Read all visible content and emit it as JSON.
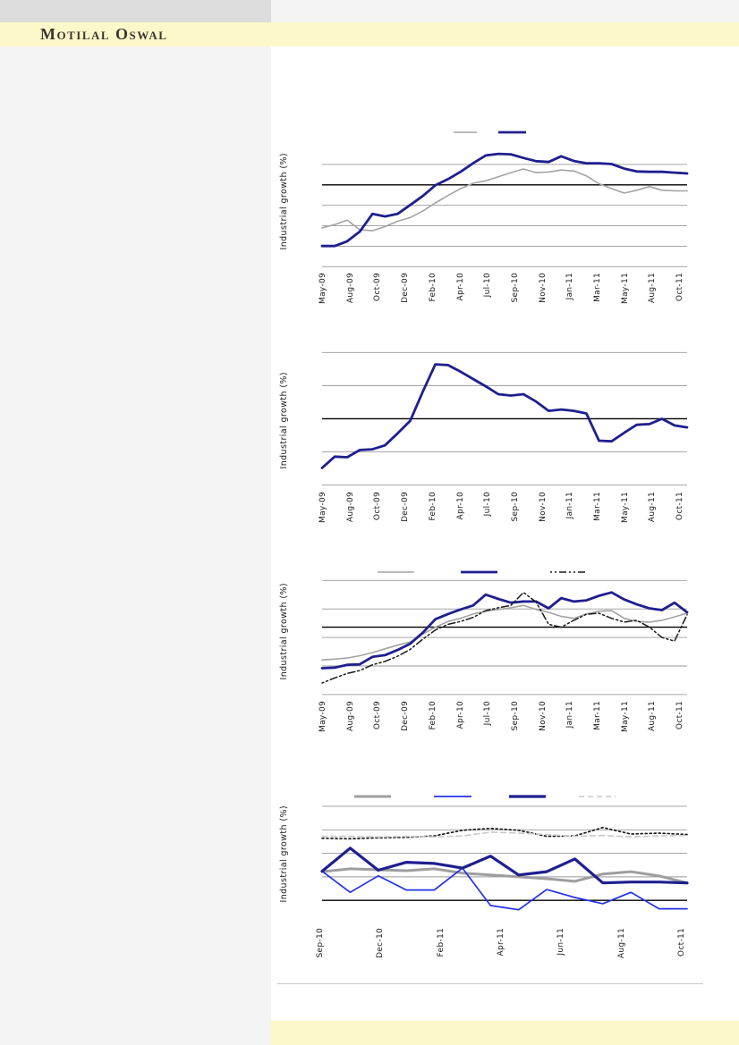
{
  "header": {
    "brand": "Motilal Oswal",
    "band_color": "#fdf8ca",
    "top_block_color": "#dcdcdc"
  },
  "footer": {
    "band_color": "#fdf8ca"
  },
  "palette": {
    "navy": "#1f1f8f",
    "bright_blue": "#2231e8",
    "gray_line": "#a3a3a3",
    "thick_gray": "#9e9e9e",
    "dotted_black": "#1a1a1a",
    "dotted_light": "#c9c9c9",
    "gridline": "#999999",
    "reference_black": "#000000"
  },
  "chart_data": [
    {
      "type": "line",
      "title": "",
      "ylabel": "Industrial growth (%)",
      "x_labels": [
        "May-09",
        "Aug-09",
        "Oct-09",
        "Dec-09",
        "Feb-10",
        "Apr-10",
        "Jul-10",
        "Sep-10",
        "Nov-10",
        "Jan-11",
        "Mar-11",
        "May-11",
        "Aug-11",
        "Oct-11"
      ],
      "ylim": [
        -22.56,
        14.62
      ],
      "gridlines": [
        5,
        -5,
        -10,
        -15,
        -20
      ],
      "reference_line": 0,
      "grid": "on",
      "legend_position": "top",
      "series": [
        {
          "name": "gray-line-series",
          "color": "#a3a3a3",
          "width": 1.6,
          "dash": "",
          "values": [
            -10.5,
            -9.7,
            -8.6,
            -11.0,
            -11.2,
            -10.2,
            -8.9,
            -8.0,
            -6.4,
            -4.4,
            -2.6,
            -0.9,
            0.4,
            1.0,
            2.0,
            3.0,
            3.9,
            3.0,
            3.15,
            3.65,
            3.4,
            2.2,
            0.3,
            -0.9,
            -2.0,
            -1.3,
            -0.4,
            -1.3,
            -1.45,
            -1.45
          ]
        },
        {
          "name": "navy-line-series",
          "color": "#1f1f8f",
          "width": 2.8,
          "dash": "",
          "values": [
            -14.95,
            -14.95,
            -13.8,
            -11.4,
            -7.1,
            -7.7,
            -7.1,
            -4.9,
            -2.7,
            -0.1,
            1.4,
            3.2,
            5.3,
            7.2,
            7.6,
            7.5,
            6.6,
            5.8,
            5.6,
            7.0,
            5.85,
            5.3,
            5.3,
            5.1,
            4.0,
            3.3,
            3.2,
            3.2,
            3.0,
            2.8
          ]
        }
      ],
      "legend": [
        {
          "series": 0,
          "x": 149,
          "w": 26
        },
        {
          "series": 1,
          "x": 199,
          "w": 31
        }
      ]
    },
    {
      "type": "line",
      "title": "",
      "ylabel": "Industrial growth (%)",
      "x_labels": [
        "May-09",
        "Aug-09",
        "Oct-09",
        "Dec-09",
        "Feb-10",
        "Apr-10",
        "Jul-10",
        "Sep-10",
        "Nov-10",
        "Jan-11",
        "Mar-11",
        "May-11",
        "Aug-11",
        "Oct-11"
      ],
      "ylim": [
        -11.66,
        11.25
      ],
      "gridlines": [
        10,
        5,
        -5,
        -10
      ],
      "reference_line": 0,
      "grid": "on",
      "legend_position": "none",
      "series": [
        {
          "name": "navy-line-series",
          "color": "#1f1f8f",
          "width": 2.8,
          "dash": "",
          "values": [
            -7.4,
            -5.7,
            -5.8,
            -4.7,
            -4.6,
            -4.0,
            -2.2,
            -0.3,
            4.1,
            8.2,
            8.1,
            7.1,
            6.0,
            4.9,
            3.7,
            3.5,
            3.7,
            2.6,
            1.2,
            1.4,
            1.2,
            0.8,
            -3.3,
            -3.4,
            -2.1,
            -0.9,
            -0.8,
            0.0,
            -1.0,
            -1.3
          ]
        }
      ],
      "legend": []
    },
    {
      "type": "line",
      "title": "",
      "ylabel": "Industrial growth (%)",
      "x_labels": [
        "May-09",
        "Aug-09",
        "Oct-09",
        "Dec-09",
        "Feb-10",
        "Apr-10",
        "Jul-10",
        "Sep-10",
        "Nov-10",
        "Jan-11",
        "Mar-11",
        "May-11",
        "Aug-11",
        "Oct-11"
      ],
      "ylim": [
        -5.8,
        18.02
      ],
      "gridlines": [
        15,
        10,
        5,
        0,
        -5
      ],
      "reference_line": 6.8,
      "grid": "on",
      "legend_position": "top",
      "series": [
        {
          "name": "gray-line-series",
          "color": "#a3a3a3",
          "width": 1.6,
          "dash": "",
          "values": [
            1.05,
            1.2,
            1.4,
            1.8,
            2.35,
            3.0,
            3.65,
            4.2,
            5.6,
            6.8,
            7.8,
            8.35,
            9.1,
            9.6,
            9.9,
            10.2,
            10.6,
            9.9,
            9.4,
            8.7,
            8.35,
            9.1,
            9.6,
            9.7,
            8.35,
            7.8,
            7.7,
            8.0,
            8.6,
            9.25
          ]
        },
        {
          "name": "navy-line-series",
          "color": "#1f1f8f",
          "width": 2.8,
          "dash": "",
          "values": [
            -0.4,
            -0.3,
            0.2,
            0.3,
            1.6,
            1.9,
            2.8,
            3.9,
            5.85,
            8.2,
            9.1,
            9.9,
            10.6,
            12.5,
            11.75,
            11.1,
            11.3,
            11.3,
            10.1,
            11.9,
            11.3,
            11.5,
            12.3,
            12.9,
            11.65,
            10.8,
            10.1,
            9.8,
            11.1,
            9.4
          ]
        },
        {
          "name": "dotted-black-series",
          "color": "#1a1a1a",
          "width": 1.5,
          "dash": "2 3 2 3 8 3",
          "values": [
            -3.0,
            -2.1,
            -1.3,
            -0.8,
            0.2,
            0.8,
            1.7,
            2.9,
            4.7,
            6.3,
            7.3,
            7.8,
            8.5,
            9.7,
            10.2,
            10.6,
            12.9,
            11.2,
            7.3,
            6.8,
            8.0,
            9.05,
            9.25,
            8.35,
            7.7,
            8.0,
            6.8,
            5.0,
            4.35,
            9.0
          ]
        }
      ],
      "legend": [
        {
          "series": 0,
          "x": 64,
          "w": 41
        },
        {
          "series": 1,
          "x": 157,
          "w": 41
        },
        {
          "series": 2,
          "x": 257,
          "w": 41
        }
      ]
    },
    {
      "type": "line",
      "title": "",
      "ylabel": "Industrial growth (%)",
      "x_labels": [
        "Sep-10",
        "Dec-10",
        "Feb-11",
        "Apr-11",
        "Jun-11",
        "Aug-11",
        "Oct-11"
      ],
      "ylim": [
        -4.34,
        24.18
      ],
      "gridlines": [
        20,
        15,
        10,
        5
      ],
      "reference_line": 0,
      "grid": "on",
      "legend_position": "top",
      "series": [
        {
          "name": "thick-gray-series",
          "color": "#9e9e9e",
          "width": 3.0,
          "dash": "",
          "values": [
            6.1,
            6.7,
            6.5,
            6.3,
            6.7,
            5.8,
            5.4,
            5.0,
            4.6,
            4.05,
            5.6,
            6.1,
            5.2,
            3.7
          ]
        },
        {
          "name": "bright-blue-series",
          "color": "#2231e8",
          "width": 1.7,
          "dash": "",
          "values": [
            6.2,
            1.7,
            5.2,
            2.2,
            2.2,
            6.85,
            -1.1,
            -2.0,
            2.3,
            0.6,
            -0.7,
            1.7,
            -1.8,
            -1.8
          ]
        },
        {
          "name": "navy-line-series",
          "color": "#1f1f8f",
          "width": 3.2,
          "dash": "",
          "values": [
            6.2,
            11.1,
            6.4,
            8.1,
            7.85,
            6.85,
            9.4,
            5.4,
            6.1,
            8.8,
            3.7,
            3.9,
            3.9,
            3.7
          ]
        },
        {
          "name": "dotted-black-series",
          "color": "#1a1a1a",
          "width": 1.7,
          "dash": "2 3",
          "values": [
            13.2,
            13.1,
            13.3,
            13.4,
            13.7,
            14.9,
            15.3,
            14.9,
            13.6,
            13.7,
            15.5,
            14.1,
            14.3,
            14.0
          ]
        },
        {
          "name": "dotted-light-series",
          "color": "#c9c9c9",
          "width": 1.6,
          "dash": "6 4",
          "values": [
            13.6,
            13.6,
            13.5,
            13.6,
            13.5,
            13.7,
            14.5,
            14.3,
            14.0,
            13.6,
            13.8,
            13.5,
            13.7,
            13.8
          ]
        }
      ],
      "legend": [
        {
          "series": 0,
          "x": 38,
          "w": 41
        },
        {
          "series": 1,
          "x": 127,
          "w": 42
        },
        {
          "series": 2,
          "x": 211,
          "w": 41
        },
        {
          "series": 4,
          "x": 289,
          "w": 41
        }
      ]
    }
  ]
}
